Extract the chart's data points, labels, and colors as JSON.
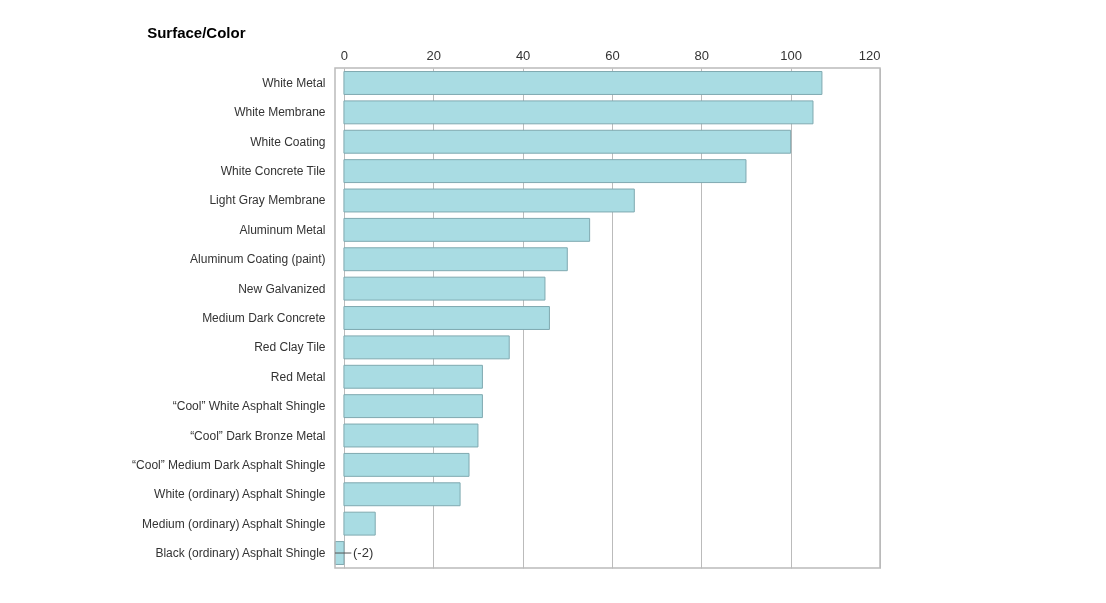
{
  "chart_data": {
    "type": "bar",
    "orientation": "horizontal",
    "ylabel": "Surface/Color",
    "categories": [
      "White Metal",
      "White Membrane",
      "White Coating",
      "White Concrete Tile",
      "Light Gray Membrane",
      "Aluminum Metal",
      "Aluminum Coating (paint)",
      "New Galvanized",
      "Medium Dark Concrete",
      "Red Clay Tile",
      "Red Metal",
      "“Cool” White Asphalt Shingle",
      "“Cool” Dark Bronze Metal",
      "“Cool” Medium Dark Asphalt Shingle",
      "White (ordinary) Asphalt Shingle",
      "Medium (ordinary) Asphalt Shingle",
      "Black (ordinary) Asphalt Shingle"
    ],
    "values": [
      107,
      105,
      100,
      90,
      65,
      55,
      50,
      45,
      46,
      37,
      31,
      31,
      30,
      28,
      26,
      7,
      -2
    ],
    "value_labels": [
      null,
      null,
      null,
      null,
      null,
      null,
      null,
      null,
      null,
      null,
      null,
      null,
      null,
      null,
      null,
      null,
      "(-2)"
    ],
    "color": "#a9dce3",
    "xlim": [
      -2,
      120
    ],
    "xticks": [
      0,
      20,
      40,
      60,
      80,
      100,
      120
    ],
    "grid": "x"
  }
}
